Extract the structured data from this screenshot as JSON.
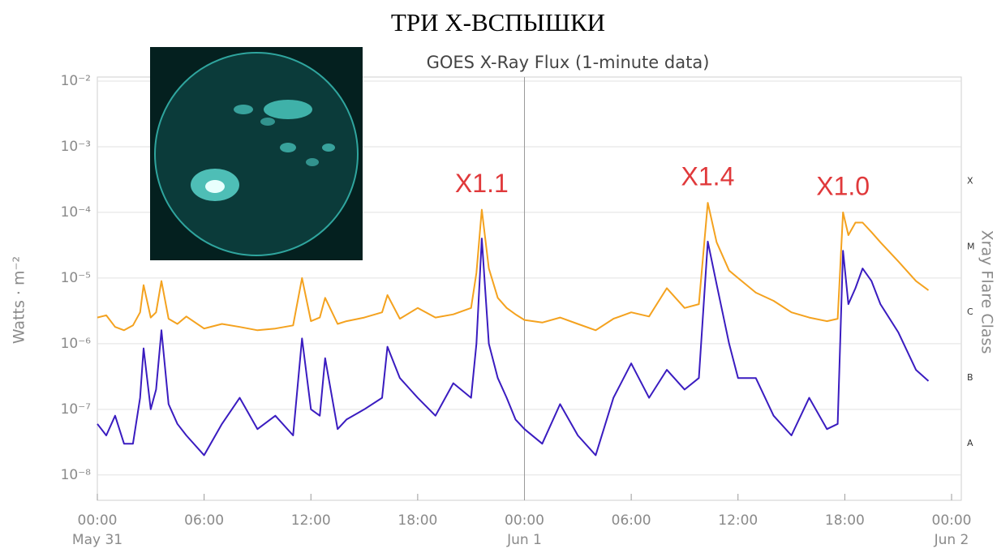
{
  "chart_data": {
    "type": "line",
    "title": "ТРИ X-ВСПЫШКИ",
    "subtitle": "GOES X-Ray Flux (1-minute data)",
    "y_label": "Watts · m⁻²",
    "y2_label": "Xray Flare Class",
    "log_y": true,
    "grid": true,
    "x": [
      0,
      0.5,
      1,
      1.5,
      2,
      2.4,
      2.6,
      3,
      3.3,
      3.6,
      4,
      4.5,
      5,
      6,
      7,
      8,
      9,
      10,
      11,
      11.5,
      12,
      12.5,
      12.8,
      13.5,
      14,
      15,
      16,
      16.3,
      17,
      18,
      19,
      20,
      21,
      21.3,
      21.6,
      22,
      22.5,
      23,
      23.5,
      24,
      25,
      26,
      27,
      28,
      29,
      30,
      31,
      32,
      33,
      33.8,
      34.3,
      34.8,
      35.5,
      36,
      37,
      38,
      39,
      40,
      41,
      41.6,
      41.9,
      42.2,
      42.6,
      43,
      43.5,
      44,
      45,
      46,
      46.7
    ],
    "series": [
      {
        "color": "#f4a21f",
        "values": [
          2.5e-06,
          2.7e-06,
          1.8e-06,
          1.6e-06,
          1.9e-06,
          3e-06,
          7.8e-06,
          2.5e-06,
          3e-06,
          9e-06,
          2.4e-06,
          2e-06,
          2.6e-06,
          1.7e-06,
          2e-06,
          1.8e-06,
          1.6e-06,
          1.7e-06,
          1.9e-06,
          1e-05,
          2.2e-06,
          2.5e-06,
          5e-06,
          2e-06,
          2.2e-06,
          2.5e-06,
          3e-06,
          5.5e-06,
          2.4e-06,
          3.5e-06,
          2.5e-06,
          2.8e-06,
          3.5e-06,
          1.2e-05,
          0.00011,
          1.4e-05,
          5e-06,
          3.5e-06,
          2.8e-06,
          2.3e-06,
          2.1e-06,
          2.5e-06,
          2e-06,
          1.6e-06,
          2.4e-06,
          3e-06,
          2.6e-06,
          7e-06,
          3.5e-06,
          4e-06,
          0.00014,
          3.5e-05,
          1.3e-05,
          1e-05,
          6e-06,
          4.5e-06,
          3e-06,
          2.5e-06,
          2.2e-06,
          2.4e-06,
          0.0001,
          4.5e-05,
          7e-05,
          7e-05,
          5e-05,
          3.5e-05,
          1.8e-05,
          9e-06,
          6.5e-06
        ]
      },
      {
        "color": "#3a1cc0",
        "values": [
          6e-08,
          4e-08,
          8e-08,
          3e-08,
          3e-08,
          1.5e-07,
          8.5e-07,
          1e-07,
          2e-07,
          1.6e-06,
          1.2e-07,
          6e-08,
          4e-08,
          2e-08,
          6e-08,
          1.5e-07,
          5e-08,
          8e-08,
          4e-08,
          1.2e-06,
          1e-07,
          8e-08,
          6e-07,
          5e-08,
          7e-08,
          1e-07,
          1.5e-07,
          9e-07,
          3e-07,
          1.5e-07,
          8e-08,
          2.5e-07,
          1.5e-07,
          1e-06,
          4e-05,
          1e-06,
          3e-07,
          1.5e-07,
          7e-08,
          5e-08,
          3e-08,
          1.2e-07,
          4e-08,
          2e-08,
          1.5e-07,
          5e-07,
          1.5e-07,
          4e-07,
          2e-07,
          3e-07,
          3.6e-05,
          8e-06,
          1e-06,
          3e-07,
          3e-07,
          8e-08,
          4e-08,
          1.5e-07,
          5e-08,
          6e-08,
          2.6e-05,
          4e-06,
          7e-06,
          1.4e-05,
          9e-06,
          4e-06,
          1.5e-06,
          4e-07,
          2.7e-07
        ]
      }
    ],
    "xlim": [
      0,
      48
    ],
    "xticks": [
      {
        "value": 0,
        "label": "00:00",
        "date": "May 31"
      },
      {
        "value": 6,
        "label": "06:00"
      },
      {
        "value": 12,
        "label": "12:00"
      },
      {
        "value": 18,
        "label": "18:00"
      },
      {
        "value": 24,
        "label": "00:00",
        "date": "Jun 1"
      },
      {
        "value": 30,
        "label": "06:00"
      },
      {
        "value": 36,
        "label": "12:00"
      },
      {
        "value": 42,
        "label": "18:00"
      },
      {
        "value": 48,
        "label": "00:00",
        "date": "Jun 2"
      }
    ],
    "ylim": [
      4e-09,
      0.01
    ],
    "yticks": [
      {
        "value": 1e-08,
        "label": "10⁻⁸"
      },
      {
        "value": 1e-07,
        "label": "10⁻⁷"
      },
      {
        "value": 1e-06,
        "label": "10⁻⁶"
      },
      {
        "value": 1e-05,
        "label": "10⁻⁵"
      },
      {
        "value": 0.0001,
        "label": "10⁻⁴"
      },
      {
        "value": 0.001,
        "label": "10⁻³"
      },
      {
        "value": 0.01,
        "label": "10⁻²"
      }
    ],
    "y2lim": [
      4e-09,
      0.01
    ],
    "y2ticks": [
      {
        "value": 3e-08,
        "label": "A"
      },
      {
        "value": 3e-07,
        "label": "B"
      },
      {
        "value": 3e-06,
        "label": "C"
      },
      {
        "value": 3e-05,
        "label": "M"
      },
      {
        "value": 0.0003,
        "label": "X"
      }
    ],
    "annotations": [
      {
        "text": "X1.1",
        "x": 21.6,
        "color": "#e0393b"
      },
      {
        "text": "X1.4",
        "x": 34.3,
        "color": "#e0393b"
      },
      {
        "text": "X1.0",
        "x": 41.9,
        "color": "#e0393b"
      }
    ]
  }
}
